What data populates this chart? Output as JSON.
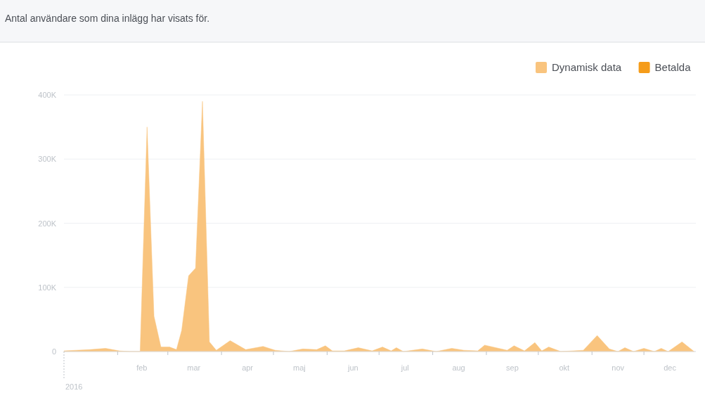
{
  "chart_data": {
    "type": "area",
    "title": "Antal användare som dina inlägg har visats för.",
    "x": [
      "2016-01-01",
      "2016-01-08",
      "2016-01-16",
      "2016-01-25",
      "2016-02-02",
      "2016-02-08",
      "2016-02-14",
      "2016-02-18",
      "2016-02-22",
      "2016-02-26",
      "2016-03-02",
      "2016-03-06",
      "2016-03-09",
      "2016-03-13",
      "2016-03-17",
      "2016-03-21",
      "2016-03-25",
      "2016-03-29",
      "2016-04-06",
      "2016-04-15",
      "2016-04-25",
      "2016-05-02",
      "2016-05-10",
      "2016-05-18",
      "2016-05-26",
      "2016-05-31",
      "2016-06-04",
      "2016-06-11",
      "2016-06-19",
      "2016-06-27",
      "2016-07-03",
      "2016-07-08",
      "2016-07-11",
      "2016-07-15",
      "2016-07-26",
      "2016-08-03",
      "2016-08-12",
      "2016-08-19",
      "2016-08-27",
      "2016-08-31",
      "2016-09-13",
      "2016-09-17",
      "2016-09-23",
      "2016-09-29",
      "2016-10-03",
      "2016-10-07",
      "2016-10-14",
      "2016-10-27",
      "2016-11-04",
      "2016-11-11",
      "2016-11-16",
      "2016-11-20",
      "2016-11-25",
      "2016-12-01",
      "2016-12-07",
      "2016-12-11",
      "2016-12-15",
      "2016-12-23",
      "2016-12-30"
    ],
    "series": [
      {
        "name": "Dynamisk data",
        "color": "#f9c47e",
        "values": [
          1000,
          2000,
          3000,
          5000,
          1000,
          0,
          0,
          350000,
          55000,
          7000,
          7000,
          3000,
          33000,
          118000,
          130000,
          390000,
          15000,
          2000,
          17000,
          3000,
          8000,
          2000,
          0,
          4000,
          3000,
          9000,
          1000,
          1000,
          6000,
          1000,
          7000,
          1000,
          6000,
          0,
          4000,
          0,
          5000,
          2000,
          1000,
          10000,
          2000,
          9000,
          1000,
          14000,
          1000,
          7000,
          0,
          2000,
          25000,
          4000,
          0,
          6000,
          0,
          5000,
          0,
          5000,
          0,
          15000,
          0
        ]
      },
      {
        "name": "Betalda",
        "color": "#f59c1a",
        "values": [
          null,
          null,
          null,
          null,
          null,
          null,
          null,
          null,
          null,
          null,
          null,
          null,
          null,
          null,
          null,
          null,
          null,
          null,
          null,
          null,
          null,
          null,
          null,
          null,
          null,
          null,
          null,
          null,
          null,
          null,
          null,
          null,
          null,
          null,
          null,
          null,
          null,
          null,
          null,
          null,
          null,
          null,
          null,
          null,
          null,
          null,
          null,
          null,
          null,
          null,
          null,
          null,
          null,
          null,
          null,
          null,
          null,
          null,
          null
        ]
      }
    ],
    "xlim": [
      "2016-01-01",
      "2016-12-31"
    ],
    "annotations": [
      "2016"
    ],
    "xticks": [
      {
        "value": "2016-02-01",
        "label": null
      },
      {
        "value": "2016-03-01",
        "label": null
      },
      {
        "value": "2016-04-01",
        "label": null
      },
      {
        "value": "2016-05-01",
        "label": null
      },
      {
        "value": "2016-06-01",
        "label": null
      },
      {
        "value": "2016-07-01",
        "label": null
      },
      {
        "value": "2016-08-01",
        "label": null
      },
      {
        "value": "2016-09-01",
        "label": null
      },
      {
        "value": "2016-10-01",
        "label": null
      },
      {
        "value": "2016-11-01",
        "label": null
      },
      {
        "value": "2016-12-01",
        "label": null
      },
      {
        "value": "2016-02-15",
        "label": "feb"
      },
      {
        "value": "2016-03-16",
        "label": "mar"
      },
      {
        "value": "2016-04-16",
        "label": "apr"
      },
      {
        "value": "2016-05-16",
        "label": "maj"
      },
      {
        "value": "2016-06-16",
        "label": "jun"
      },
      {
        "value": "2016-07-16",
        "label": "jul"
      },
      {
        "value": "2016-08-16",
        "label": "aug"
      },
      {
        "value": "2016-09-16",
        "label": "sep"
      },
      {
        "value": "2016-10-16",
        "label": "okt"
      },
      {
        "value": "2016-11-16",
        "label": "nov"
      },
      {
        "value": "2016-12-16",
        "label": "dec"
      }
    ],
    "ylim": [
      0,
      400000
    ],
    "yticks": [
      {
        "value": 0,
        "label": "0"
      },
      {
        "value": 100000,
        "label": "100K"
      },
      {
        "value": 200000,
        "label": "200K"
      },
      {
        "value": 300000,
        "label": "300K"
      },
      {
        "value": 400000,
        "label": "400K"
      }
    ],
    "grid": "y",
    "legend": "top right"
  }
}
